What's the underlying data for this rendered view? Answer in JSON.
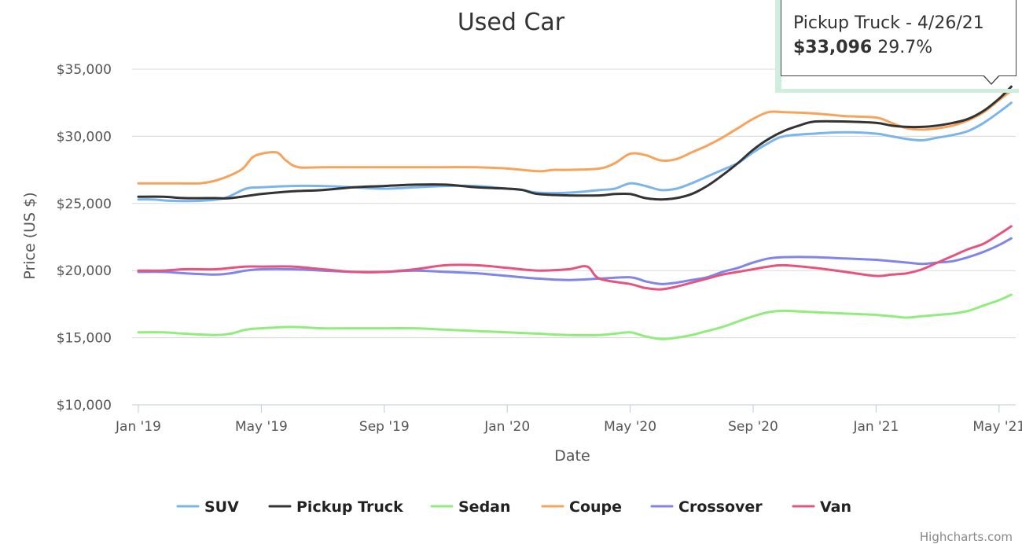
{
  "chart_data": {
    "type": "line",
    "title": "Used Car",
    "xlabel": "Date",
    "ylabel": "Price (US $)",
    "ylim": [
      10000,
      35000
    ],
    "y_ticks": [
      {
        "value": 10000,
        "label": "$10,000"
      },
      {
        "value": 15000,
        "label": "$15,000"
      },
      {
        "value": 20000,
        "label": "$20,000"
      },
      {
        "value": 25000,
        "label": "$25,000"
      },
      {
        "value": 30000,
        "label": "$30,000"
      },
      {
        "value": 35000,
        "label": "$35,000"
      }
    ],
    "x_ticks": [
      {
        "label": "Jan '19",
        "month_index": 0
      },
      {
        "label": "May '19",
        "month_index": 4
      },
      {
        "label": "Sep '19",
        "month_index": 8
      },
      {
        "label": "Jan '20",
        "month_index": 12
      },
      {
        "label": "May '20",
        "month_index": 16
      },
      {
        "label": "Sep '20",
        "month_index": 20
      },
      {
        "label": "Jan '21",
        "month_index": 24
      },
      {
        "label": "May '21",
        "month_index": 28
      }
    ],
    "grid": true,
    "legend_position": "bottom",
    "series": [
      {
        "name": "SUV",
        "color": "#7cb5ec",
        "points": [
          [
            0,
            25300
          ],
          [
            0.5,
            25300
          ],
          [
            1,
            25200
          ],
          [
            2,
            25200
          ],
          [
            2.8,
            25400
          ],
          [
            3.5,
            26100
          ],
          [
            4,
            26200
          ],
          [
            5,
            26300
          ],
          [
            6,
            26300
          ],
          [
            7,
            26200
          ],
          [
            8,
            26100
          ],
          [
            9,
            26200
          ],
          [
            10,
            26300
          ],
          [
            11,
            26300
          ],
          [
            12,
            26100
          ],
          [
            12.5,
            26000
          ],
          [
            13,
            25800
          ],
          [
            14,
            25800
          ],
          [
            15,
            26000
          ],
          [
            15.5,
            26100
          ],
          [
            16,
            26500
          ],
          [
            16.5,
            26300
          ],
          [
            17,
            26000
          ],
          [
            17.5,
            26100
          ],
          [
            18,
            26500
          ],
          [
            18.5,
            27000
          ],
          [
            19,
            27500
          ],
          [
            19.5,
            28000
          ],
          [
            20,
            28800
          ],
          [
            20.5,
            29500
          ],
          [
            21,
            30000
          ],
          [
            22,
            30200
          ],
          [
            23,
            30300
          ],
          [
            24,
            30200
          ],
          [
            24.5,
            30000
          ],
          [
            25,
            29800
          ],
          [
            25.5,
            29700
          ],
          [
            26,
            29900
          ],
          [
            26.5,
            30100
          ],
          [
            27,
            30400
          ],
          [
            27.5,
            31000
          ],
          [
            28,
            31800
          ],
          [
            28.4,
            32500
          ]
        ]
      },
      {
        "name": "Pickup Truck",
        "color": "#333333",
        "points": [
          [
            0,
            25500
          ],
          [
            0.8,
            25500
          ],
          [
            1.5,
            25400
          ],
          [
            2.5,
            25400
          ],
          [
            3,
            25400
          ],
          [
            4,
            25700
          ],
          [
            5,
            25900
          ],
          [
            6,
            26000
          ],
          [
            7,
            26200
          ],
          [
            8,
            26300
          ],
          [
            9,
            26400
          ],
          [
            10,
            26400
          ],
          [
            11,
            26200
          ],
          [
            12,
            26100
          ],
          [
            12.5,
            26000
          ],
          [
            13,
            25700
          ],
          [
            14,
            25600
          ],
          [
            15,
            25600
          ],
          [
            15.5,
            25700
          ],
          [
            16,
            25700
          ],
          [
            16.5,
            25400
          ],
          [
            17,
            25300
          ],
          [
            17.5,
            25400
          ],
          [
            18,
            25700
          ],
          [
            18.5,
            26300
          ],
          [
            19,
            27100
          ],
          [
            19.5,
            28000
          ],
          [
            20,
            29000
          ],
          [
            20.5,
            29800
          ],
          [
            21,
            30400
          ],
          [
            21.5,
            30800
          ],
          [
            22,
            31100
          ],
          [
            23,
            31100
          ],
          [
            24,
            31000
          ],
          [
            24.5,
            30800
          ],
          [
            25,
            30700
          ],
          [
            25.5,
            30700
          ],
          [
            26,
            30800
          ],
          [
            26.5,
            31000
          ],
          [
            27,
            31300
          ],
          [
            27.5,
            31900
          ],
          [
            28,
            32800
          ],
          [
            28.4,
            33700
          ]
        ]
      },
      {
        "name": "Sedan",
        "color": "#90ed7d",
        "points": [
          [
            0,
            15400
          ],
          [
            0.8,
            15400
          ],
          [
            1.5,
            15300
          ],
          [
            2.5,
            15200
          ],
          [
            3,
            15300
          ],
          [
            3.5,
            15600
          ],
          [
            4,
            15700
          ],
          [
            5,
            15800
          ],
          [
            6,
            15700
          ],
          [
            7,
            15700
          ],
          [
            8,
            15700
          ],
          [
            9,
            15700
          ],
          [
            10,
            15600
          ],
          [
            11,
            15500
          ],
          [
            12,
            15400
          ],
          [
            13,
            15300
          ],
          [
            14,
            15200
          ],
          [
            15,
            15200
          ],
          [
            15.5,
            15300
          ],
          [
            16,
            15400
          ],
          [
            16.5,
            15100
          ],
          [
            17,
            14900
          ],
          [
            17.5,
            15000
          ],
          [
            18,
            15200
          ],
          [
            18.5,
            15500
          ],
          [
            19,
            15800
          ],
          [
            19.5,
            16200
          ],
          [
            20,
            16600
          ],
          [
            20.5,
            16900
          ],
          [
            21,
            17000
          ],
          [
            22,
            16900
          ],
          [
            23,
            16800
          ],
          [
            24,
            16700
          ],
          [
            24.5,
            16600
          ],
          [
            25,
            16500
          ],
          [
            25.5,
            16600
          ],
          [
            26,
            16700
          ],
          [
            26.5,
            16800
          ],
          [
            27,
            17000
          ],
          [
            27.5,
            17400
          ],
          [
            28,
            17800
          ],
          [
            28.4,
            18200
          ]
        ]
      },
      {
        "name": "Coupe",
        "color": "#f7a35c",
        "points": [
          [
            0,
            26500
          ],
          [
            0.5,
            26500
          ],
          [
            1,
            26500
          ],
          [
            2,
            26500
          ],
          [
            2.5,
            26700
          ],
          [
            3,
            27100
          ],
          [
            3.4,
            27600
          ],
          [
            3.7,
            28400
          ],
          [
            4,
            28700
          ],
          [
            4.5,
            28800
          ],
          [
            4.8,
            28200
          ],
          [
            5.2,
            27700
          ],
          [
            6,
            27700
          ],
          [
            7,
            27700
          ],
          [
            8,
            27700
          ],
          [
            9,
            27700
          ],
          [
            9.5,
            27700
          ],
          [
            10,
            27700
          ],
          [
            11,
            27700
          ],
          [
            12,
            27600
          ],
          [
            13,
            27400
          ],
          [
            13.5,
            27500
          ],
          [
            14,
            27500
          ],
          [
            15,
            27600
          ],
          [
            15.5,
            28000
          ],
          [
            16,
            28700
          ],
          [
            16.5,
            28600
          ],
          [
            17,
            28200
          ],
          [
            17.5,
            28300
          ],
          [
            18,
            28800
          ],
          [
            18.5,
            29300
          ],
          [
            19,
            29900
          ],
          [
            19.5,
            30600
          ],
          [
            20,
            31300
          ],
          [
            20.5,
            31800
          ],
          [
            21,
            31800
          ],
          [
            22,
            31700
          ],
          [
            23,
            31500
          ],
          [
            24,
            31400
          ],
          [
            24.5,
            31000
          ],
          [
            25,
            30600
          ],
          [
            25.5,
            30500
          ],
          [
            26,
            30600
          ],
          [
            26.5,
            30800
          ],
          [
            27,
            31200
          ],
          [
            27.5,
            31800
          ],
          [
            28,
            32700
          ],
          [
            28.4,
            33400
          ]
        ]
      },
      {
        "name": "Crossover",
        "color": "#8085e9",
        "points": [
          [
            0,
            19900
          ],
          [
            0.8,
            19900
          ],
          [
            1.5,
            19800
          ],
          [
            2.5,
            19700
          ],
          [
            3,
            19800
          ],
          [
            3.5,
            20000
          ],
          [
            4,
            20100
          ],
          [
            5,
            20100
          ],
          [
            6,
            20000
          ],
          [
            7,
            19900
          ],
          [
            8,
            19900
          ],
          [
            9,
            20000
          ],
          [
            10,
            19900
          ],
          [
            11,
            19800
          ],
          [
            12,
            19600
          ],
          [
            13,
            19400
          ],
          [
            14,
            19300
          ],
          [
            15,
            19400
          ],
          [
            16,
            19500
          ],
          [
            16.5,
            19200
          ],
          [
            17,
            19000
          ],
          [
            17.5,
            19100
          ],
          [
            18,
            19300
          ],
          [
            18.5,
            19500
          ],
          [
            19,
            19900
          ],
          [
            19.5,
            20200
          ],
          [
            20,
            20600
          ],
          [
            20.5,
            20900
          ],
          [
            21,
            21000
          ],
          [
            22,
            21000
          ],
          [
            23,
            20900
          ],
          [
            24,
            20800
          ],
          [
            24.5,
            20700
          ],
          [
            25,
            20600
          ],
          [
            25.5,
            20500
          ],
          [
            26,
            20600
          ],
          [
            26.5,
            20700
          ],
          [
            27,
            21000
          ],
          [
            27.5,
            21400
          ],
          [
            28,
            21900
          ],
          [
            28.4,
            22400
          ]
        ]
      },
      {
        "name": "Van",
        "color": "#e4547f",
        "points": [
          [
            0,
            20000
          ],
          [
            0.8,
            20000
          ],
          [
            1.5,
            20100
          ],
          [
            2.5,
            20100
          ],
          [
            3,
            20200
          ],
          [
            3.5,
            20300
          ],
          [
            4,
            20300
          ],
          [
            5,
            20300
          ],
          [
            6,
            20100
          ],
          [
            7,
            19900
          ],
          [
            8,
            19900
          ],
          [
            9,
            20100
          ],
          [
            10,
            20400
          ],
          [
            11,
            20400
          ],
          [
            12,
            20200
          ],
          [
            13,
            20000
          ],
          [
            14,
            20100
          ],
          [
            14.6,
            20300
          ],
          [
            15,
            19400
          ],
          [
            16,
            19000
          ],
          [
            16.5,
            18700
          ],
          [
            17,
            18600
          ],
          [
            17.5,
            18800
          ],
          [
            18,
            19100
          ],
          [
            18.5,
            19400
          ],
          [
            19,
            19700
          ],
          [
            19.5,
            19900
          ],
          [
            20,
            20100
          ],
          [
            20.5,
            20300
          ],
          [
            21,
            20400
          ],
          [
            22,
            20200
          ],
          [
            23,
            19900
          ],
          [
            24,
            19600
          ],
          [
            24.5,
            19700
          ],
          [
            25,
            19800
          ],
          [
            25.5,
            20100
          ],
          [
            26,
            20600
          ],
          [
            26.5,
            21100
          ],
          [
            27,
            21600
          ],
          [
            27.5,
            22000
          ],
          [
            28,
            22700
          ],
          [
            28.4,
            23300
          ]
        ]
      }
    ]
  },
  "tooltip": {
    "header": "Pickup Truck - 4/26/21",
    "value": "$33,096",
    "change": "29.7%"
  },
  "credits": "Highcharts.com"
}
